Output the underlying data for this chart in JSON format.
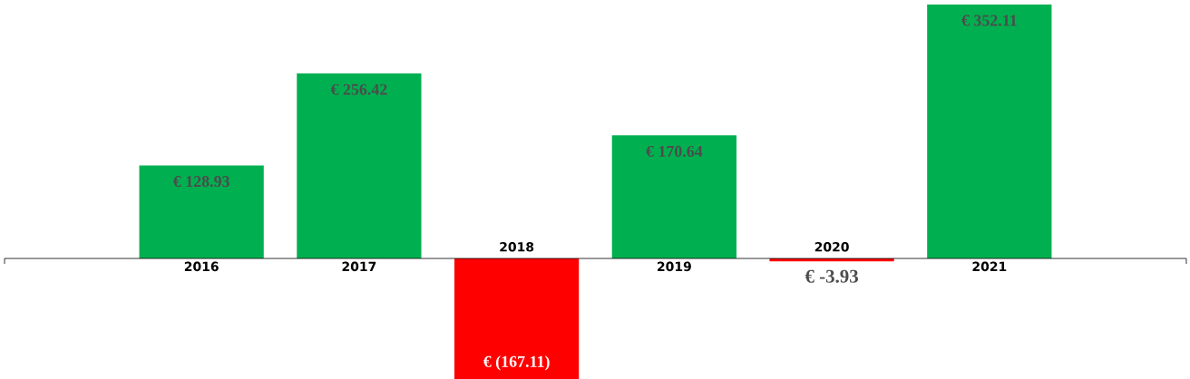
{
  "chart_data": {
    "type": "bar",
    "categories": [
      "2016",
      "2017",
      "2018",
      "2019",
      "2020",
      "2021"
    ],
    "values": [
      128.93,
      256.42,
      -167.11,
      170.64,
      -3.93,
      352.11
    ],
    "colors": [
      "#00b050",
      "#00b050",
      "#ff0000",
      "#00b050",
      "#ff0000",
      "#00b050"
    ],
    "value_labels": [
      "€ 128.93",
      "€ 256.42",
      "€ (167.11)",
      "€ 170.64",
      "€ -3.93",
      "€ 352.11"
    ]
  }
}
